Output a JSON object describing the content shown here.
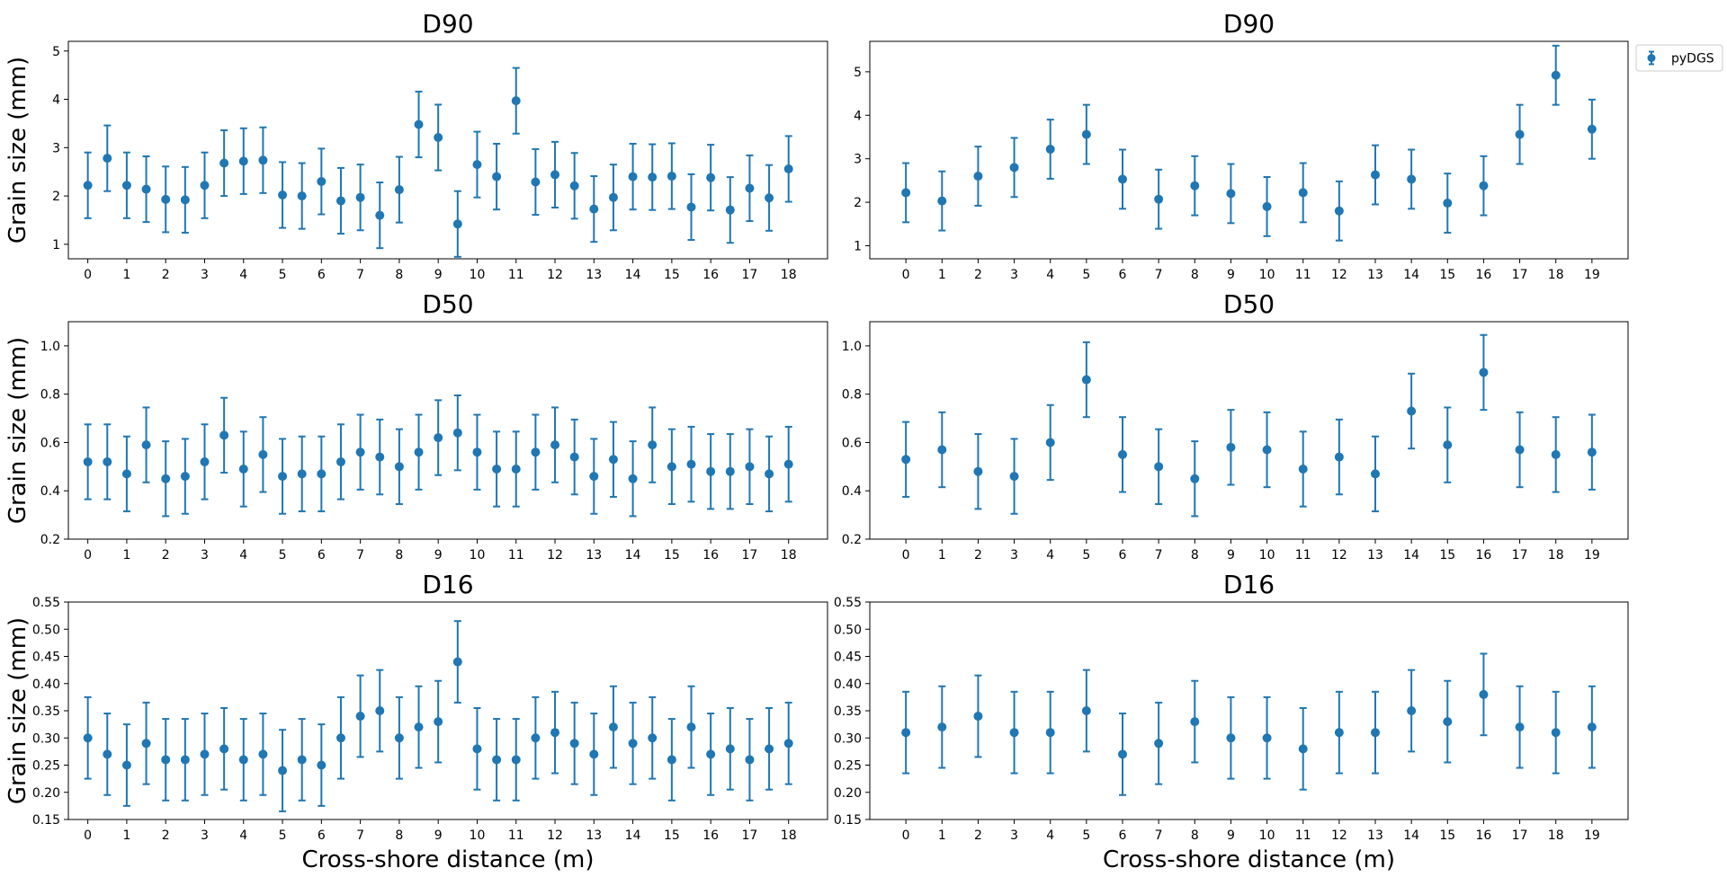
{
  "figure": {
    "series_color": "#1f77b4",
    "legend_label": "pyDGS",
    "legend_location": "outside upper right of top-right panel"
  },
  "chart_data": [
    {
      "type": "scatter",
      "style": "errorbar",
      "title": "D90",
      "xlabel": "",
      "ylabel": "Grain size (mm)",
      "xlim": [
        -0.5,
        19.0
      ],
      "ylim": [
        0.7,
        5.2
      ],
      "xticks": [
        0,
        1,
        2,
        3,
        4,
        5,
        6,
        7,
        8,
        9,
        10,
        11,
        12,
        13,
        14,
        15,
        16,
        17,
        18
      ],
      "yticks": [
        1,
        2,
        3,
        4,
        5
      ],
      "x": [
        0,
        0.5,
        1,
        1.5,
        2,
        2.5,
        3,
        3.5,
        4,
        4.5,
        5,
        5.5,
        6,
        6.5,
        7,
        7.5,
        8,
        8.5,
        9,
        9.5,
        10,
        10.5,
        11,
        11.5,
        12,
        12.5,
        13,
        13.5,
        14,
        14.5,
        15,
        15.5,
        16,
        16.5,
        17,
        17.5,
        18
      ],
      "y": [
        2.22,
        2.78,
        2.22,
        2.14,
        1.93,
        1.92,
        2.22,
        2.68,
        2.72,
        2.74,
        2.02,
        2.0,
        2.3,
        1.9,
        1.97,
        1.6,
        2.13,
        3.48,
        3.21,
        1.42,
        2.65,
        2.4,
        3.97,
        2.29,
        2.44,
        2.21,
        1.73,
        1.97,
        2.4,
        2.39,
        2.41,
        1.77,
        2.38,
        1.71,
        2.16,
        1.96,
        2.56
      ],
      "yerr": [
        0.68,
        0.68,
        0.68,
        0.68,
        0.68,
        0.68,
        0.68,
        0.68,
        0.68,
        0.68,
        0.68,
        0.68,
        0.68,
        0.68,
        0.68,
        0.68,
        0.68,
        0.68,
        0.68,
        0.68,
        0.68,
        0.68,
        0.68,
        0.68,
        0.68,
        0.68,
        0.68,
        0.68,
        0.68,
        0.68,
        0.68,
        0.68,
        0.68,
        0.68,
        0.68,
        0.68,
        0.68
      ]
    },
    {
      "type": "scatter",
      "style": "errorbar",
      "title": "D90",
      "xlabel": "",
      "ylabel": "",
      "xlim": [
        -1.0,
        20.0
      ],
      "ylim": [
        0.7,
        5.7
      ],
      "xticks": [
        0,
        1,
        2,
        3,
        4,
        5,
        6,
        7,
        8,
        9,
        10,
        11,
        12,
        13,
        14,
        15,
        16,
        17,
        18,
        19
      ],
      "yticks": [
        1,
        2,
        3,
        4,
        5
      ],
      "x": [
        0,
        1,
        2,
        3,
        4,
        5,
        6,
        7,
        8,
        9,
        10,
        11,
        12,
        13,
        14,
        15,
        16,
        17,
        18,
        19
      ],
      "y": [
        2.22,
        2.03,
        2.6,
        2.8,
        3.22,
        3.56,
        2.53,
        2.07,
        2.38,
        2.2,
        1.9,
        2.22,
        1.8,
        2.63,
        2.53,
        1.98,
        2.38,
        3.56,
        4.92,
        3.68
      ],
      "yerr": [
        0.68,
        0.68,
        0.68,
        0.68,
        0.68,
        0.68,
        0.68,
        0.68,
        0.68,
        0.68,
        0.68,
        0.68,
        0.68,
        0.68,
        0.68,
        0.68,
        0.68,
        0.68,
        0.68,
        0.68
      ]
    },
    {
      "type": "scatter",
      "style": "errorbar",
      "title": "D50",
      "xlabel": "",
      "ylabel": "Grain size (mm)",
      "xlim": [
        -0.5,
        19.0
      ],
      "ylim": [
        0.2,
        1.1
      ],
      "xticks": [
        0,
        1,
        2,
        3,
        4,
        5,
        6,
        7,
        8,
        9,
        10,
        11,
        12,
        13,
        14,
        15,
        16,
        17,
        18
      ],
      "yticks": [
        0.2,
        0.4,
        0.6,
        0.8,
        1.0
      ],
      "x": [
        0,
        0.5,
        1,
        1.5,
        2,
        2.5,
        3,
        3.5,
        4,
        4.5,
        5,
        5.5,
        6,
        6.5,
        7,
        7.5,
        8,
        8.5,
        9,
        9.5,
        10,
        10.5,
        11,
        11.5,
        12,
        12.5,
        13,
        13.5,
        14,
        14.5,
        15,
        15.5,
        16,
        16.5,
        17,
        17.5,
        18
      ],
      "y": [
        0.52,
        0.52,
        0.47,
        0.59,
        0.45,
        0.46,
        0.52,
        0.63,
        0.49,
        0.55,
        0.46,
        0.47,
        0.47,
        0.52,
        0.56,
        0.54,
        0.5,
        0.56,
        0.62,
        0.64,
        0.56,
        0.49,
        0.49,
        0.56,
        0.59,
        0.54,
        0.46,
        0.53,
        0.45,
        0.59,
        0.5,
        0.51,
        0.48,
        0.48,
        0.5,
        0.47,
        0.51
      ],
      "yerr": [
        0.155,
        0.155,
        0.155,
        0.155,
        0.155,
        0.155,
        0.155,
        0.155,
        0.155,
        0.155,
        0.155,
        0.155,
        0.155,
        0.155,
        0.155,
        0.155,
        0.155,
        0.155,
        0.155,
        0.155,
        0.155,
        0.155,
        0.155,
        0.155,
        0.155,
        0.155,
        0.155,
        0.155,
        0.155,
        0.155,
        0.155,
        0.155,
        0.155,
        0.155,
        0.155,
        0.155,
        0.155
      ]
    },
    {
      "type": "scatter",
      "style": "errorbar",
      "title": "D50",
      "xlabel": "",
      "ylabel": "",
      "xlim": [
        -1.0,
        20.0
      ],
      "ylim": [
        0.2,
        1.1
      ],
      "xticks": [
        0,
        1,
        2,
        3,
        4,
        5,
        6,
        7,
        8,
        9,
        10,
        11,
        12,
        13,
        14,
        15,
        16,
        17,
        18,
        19
      ],
      "yticks": [
        0.2,
        0.4,
        0.6,
        0.8,
        1.0
      ],
      "x": [
        0,
        1,
        2,
        3,
        4,
        5,
        6,
        7,
        8,
        9,
        10,
        11,
        12,
        13,
        14,
        15,
        16,
        17,
        18,
        19
      ],
      "y": [
        0.53,
        0.57,
        0.48,
        0.46,
        0.6,
        0.86,
        0.55,
        0.5,
        0.45,
        0.58,
        0.57,
        0.49,
        0.54,
        0.47,
        0.73,
        0.59,
        0.89,
        0.57,
        0.55,
        0.56
      ],
      "yerr": [
        0.155,
        0.155,
        0.155,
        0.155,
        0.155,
        0.155,
        0.155,
        0.155,
        0.155,
        0.155,
        0.155,
        0.155,
        0.155,
        0.155,
        0.155,
        0.155,
        0.155,
        0.155,
        0.155,
        0.155
      ]
    },
    {
      "type": "scatter",
      "style": "errorbar",
      "title": "D16",
      "xlabel": "Cross-shore distance (m)",
      "ylabel": "Grain size (mm)",
      "xlim": [
        -0.5,
        19.0
      ],
      "ylim": [
        0.15,
        0.55
      ],
      "xticks": [
        0,
        1,
        2,
        3,
        4,
        5,
        6,
        7,
        8,
        9,
        10,
        11,
        12,
        13,
        14,
        15,
        16,
        17,
        18
      ],
      "yticks": [
        0.15,
        0.2,
        0.25,
        0.3,
        0.35,
        0.4,
        0.45,
        0.5,
        0.55
      ],
      "x": [
        0,
        0.5,
        1,
        1.5,
        2,
        2.5,
        3,
        3.5,
        4,
        4.5,
        5,
        5.5,
        6,
        6.5,
        7,
        7.5,
        8,
        8.5,
        9,
        9.5,
        10,
        10.5,
        11,
        11.5,
        12,
        12.5,
        13,
        13.5,
        14,
        14.5,
        15,
        15.5,
        16,
        16.5,
        17,
        17.5,
        18
      ],
      "y": [
        0.3,
        0.27,
        0.25,
        0.29,
        0.26,
        0.26,
        0.27,
        0.28,
        0.26,
        0.27,
        0.24,
        0.26,
        0.25,
        0.3,
        0.34,
        0.35,
        0.3,
        0.32,
        0.33,
        0.44,
        0.28,
        0.26,
        0.26,
        0.3,
        0.31,
        0.29,
        0.27,
        0.32,
        0.29,
        0.3,
        0.26,
        0.32,
        0.27,
        0.28,
        0.26,
        0.28,
        0.29
      ],
      "yerr": [
        0.075,
        0.075,
        0.075,
        0.075,
        0.075,
        0.075,
        0.075,
        0.075,
        0.075,
        0.075,
        0.075,
        0.075,
        0.075,
        0.075,
        0.075,
        0.075,
        0.075,
        0.075,
        0.075,
        0.075,
        0.075,
        0.075,
        0.075,
        0.075,
        0.075,
        0.075,
        0.075,
        0.075,
        0.075,
        0.075,
        0.075,
        0.075,
        0.075,
        0.075,
        0.075,
        0.075,
        0.075
      ]
    },
    {
      "type": "scatter",
      "style": "errorbar",
      "title": "D16",
      "xlabel": "Cross-shore distance (m)",
      "ylabel": "",
      "xlim": [
        -1.0,
        20.0
      ],
      "ylim": [
        0.15,
        0.55
      ],
      "xticks": [
        0,
        1,
        2,
        3,
        4,
        5,
        6,
        7,
        8,
        9,
        10,
        11,
        12,
        13,
        14,
        15,
        16,
        17,
        18,
        19
      ],
      "yticks": [
        0.15,
        0.2,
        0.25,
        0.3,
        0.35,
        0.4,
        0.45,
        0.5,
        0.55
      ],
      "x": [
        0,
        1,
        2,
        3,
        4,
        5,
        6,
        7,
        8,
        9,
        10,
        11,
        12,
        13,
        14,
        15,
        16,
        17,
        18,
        19
      ],
      "y": [
        0.31,
        0.32,
        0.34,
        0.31,
        0.31,
        0.35,
        0.27,
        0.29,
        0.33,
        0.3,
        0.3,
        0.28,
        0.31,
        0.31,
        0.35,
        0.33,
        0.38,
        0.32,
        0.31,
        0.32
      ],
      "yerr": [
        0.075,
        0.075,
        0.075,
        0.075,
        0.075,
        0.075,
        0.075,
        0.075,
        0.075,
        0.075,
        0.075,
        0.075,
        0.075,
        0.075,
        0.075,
        0.075,
        0.075,
        0.075,
        0.075,
        0.075
      ]
    }
  ]
}
